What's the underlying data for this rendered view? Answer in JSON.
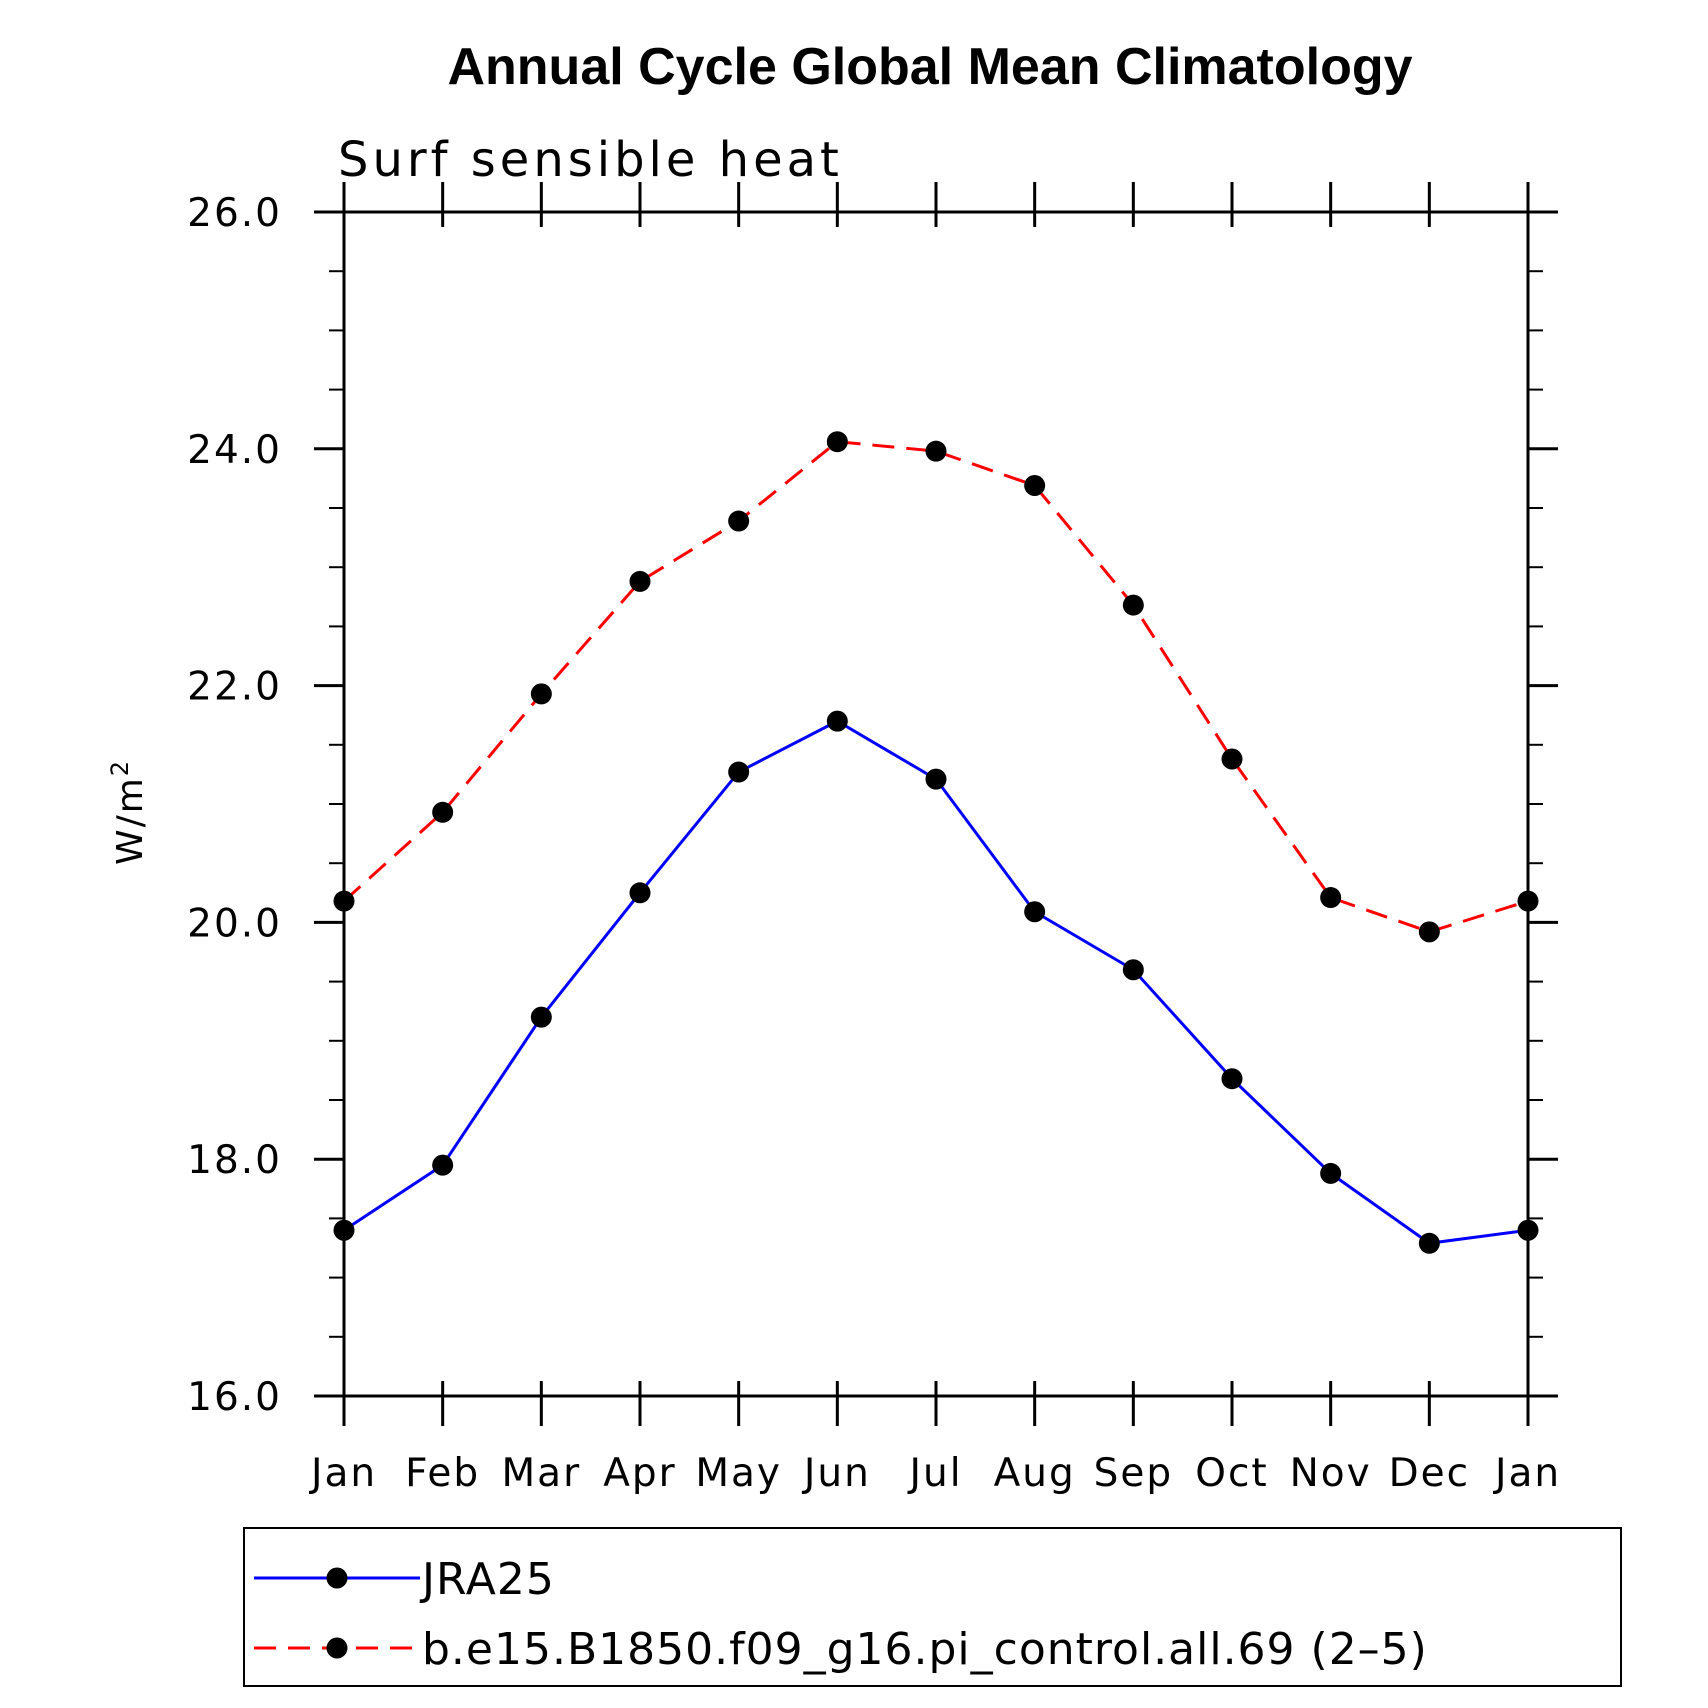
{
  "chart_data": {
    "type": "line",
    "title": "Annual Cycle Global Mean Climatology",
    "subtitle": "Surf sensible heat",
    "ylabel": "W/m",
    "ylabel_superscript": "2",
    "xlabel": "",
    "categories": [
      "Jan",
      "Feb",
      "Mar",
      "Apr",
      "May",
      "Jun",
      "Jul",
      "Aug",
      "Sep",
      "Oct",
      "Nov",
      "Dec",
      "Jan"
    ],
    "ylim": [
      16.0,
      26.0
    ],
    "yticks": [
      "16.0",
      "18.0",
      "20.0",
      "22.0",
      "24.0",
      "26.0"
    ],
    "grid": false,
    "legend_position": "bottom",
    "series": [
      {
        "name": "JRA25",
        "color": "#0000ff",
        "line_style": "solid",
        "marker": "filled-circle",
        "values": [
          17.4,
          17.95,
          19.2,
          20.25,
          21.27,
          21.7,
          21.21,
          20.09,
          19.6,
          18.68,
          17.88,
          17.29,
          17.4
        ]
      },
      {
        "name": "b.e15.B1850.f09_g16.pi_control.all.69 (2–5)",
        "color": "#ff0000",
        "line_style": "dashed",
        "marker": "filled-circle",
        "values": [
          20.18,
          20.93,
          21.93,
          22.88,
          23.39,
          24.06,
          23.98,
          23.69,
          22.68,
          21.38,
          20.21,
          19.92,
          20.18
        ]
      }
    ]
  }
}
